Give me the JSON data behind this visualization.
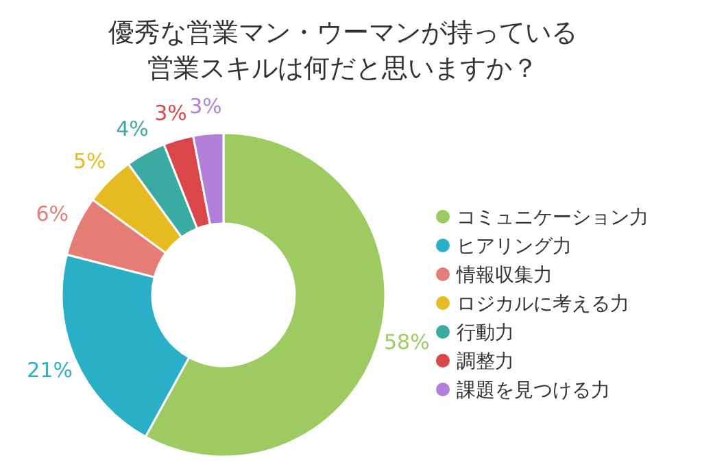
{
  "chart_data": {
    "type": "donut",
    "title": "優秀な営業マン・ウーマンが持っている営業スキルは何だと思いますか？",
    "categories": [
      "コミュニケーション力",
      "ヒアリング力",
      "情報収集力",
      "ロジカルに考える力",
      "行動力",
      "調整力",
      "課題を見つける力"
    ],
    "values": [
      58,
      21,
      6,
      5,
      4,
      3,
      3
    ],
    "colors": [
      "#9dcb62",
      "#2aafc9",
      "#e57d76",
      "#e6bb22",
      "#3aaba3",
      "#d9474b",
      "#b47fd8"
    ],
    "value_labels": [
      "58%",
      "21%",
      "6%",
      "5%",
      "4%",
      "3%",
      "3%"
    ],
    "legend": "right"
  }
}
